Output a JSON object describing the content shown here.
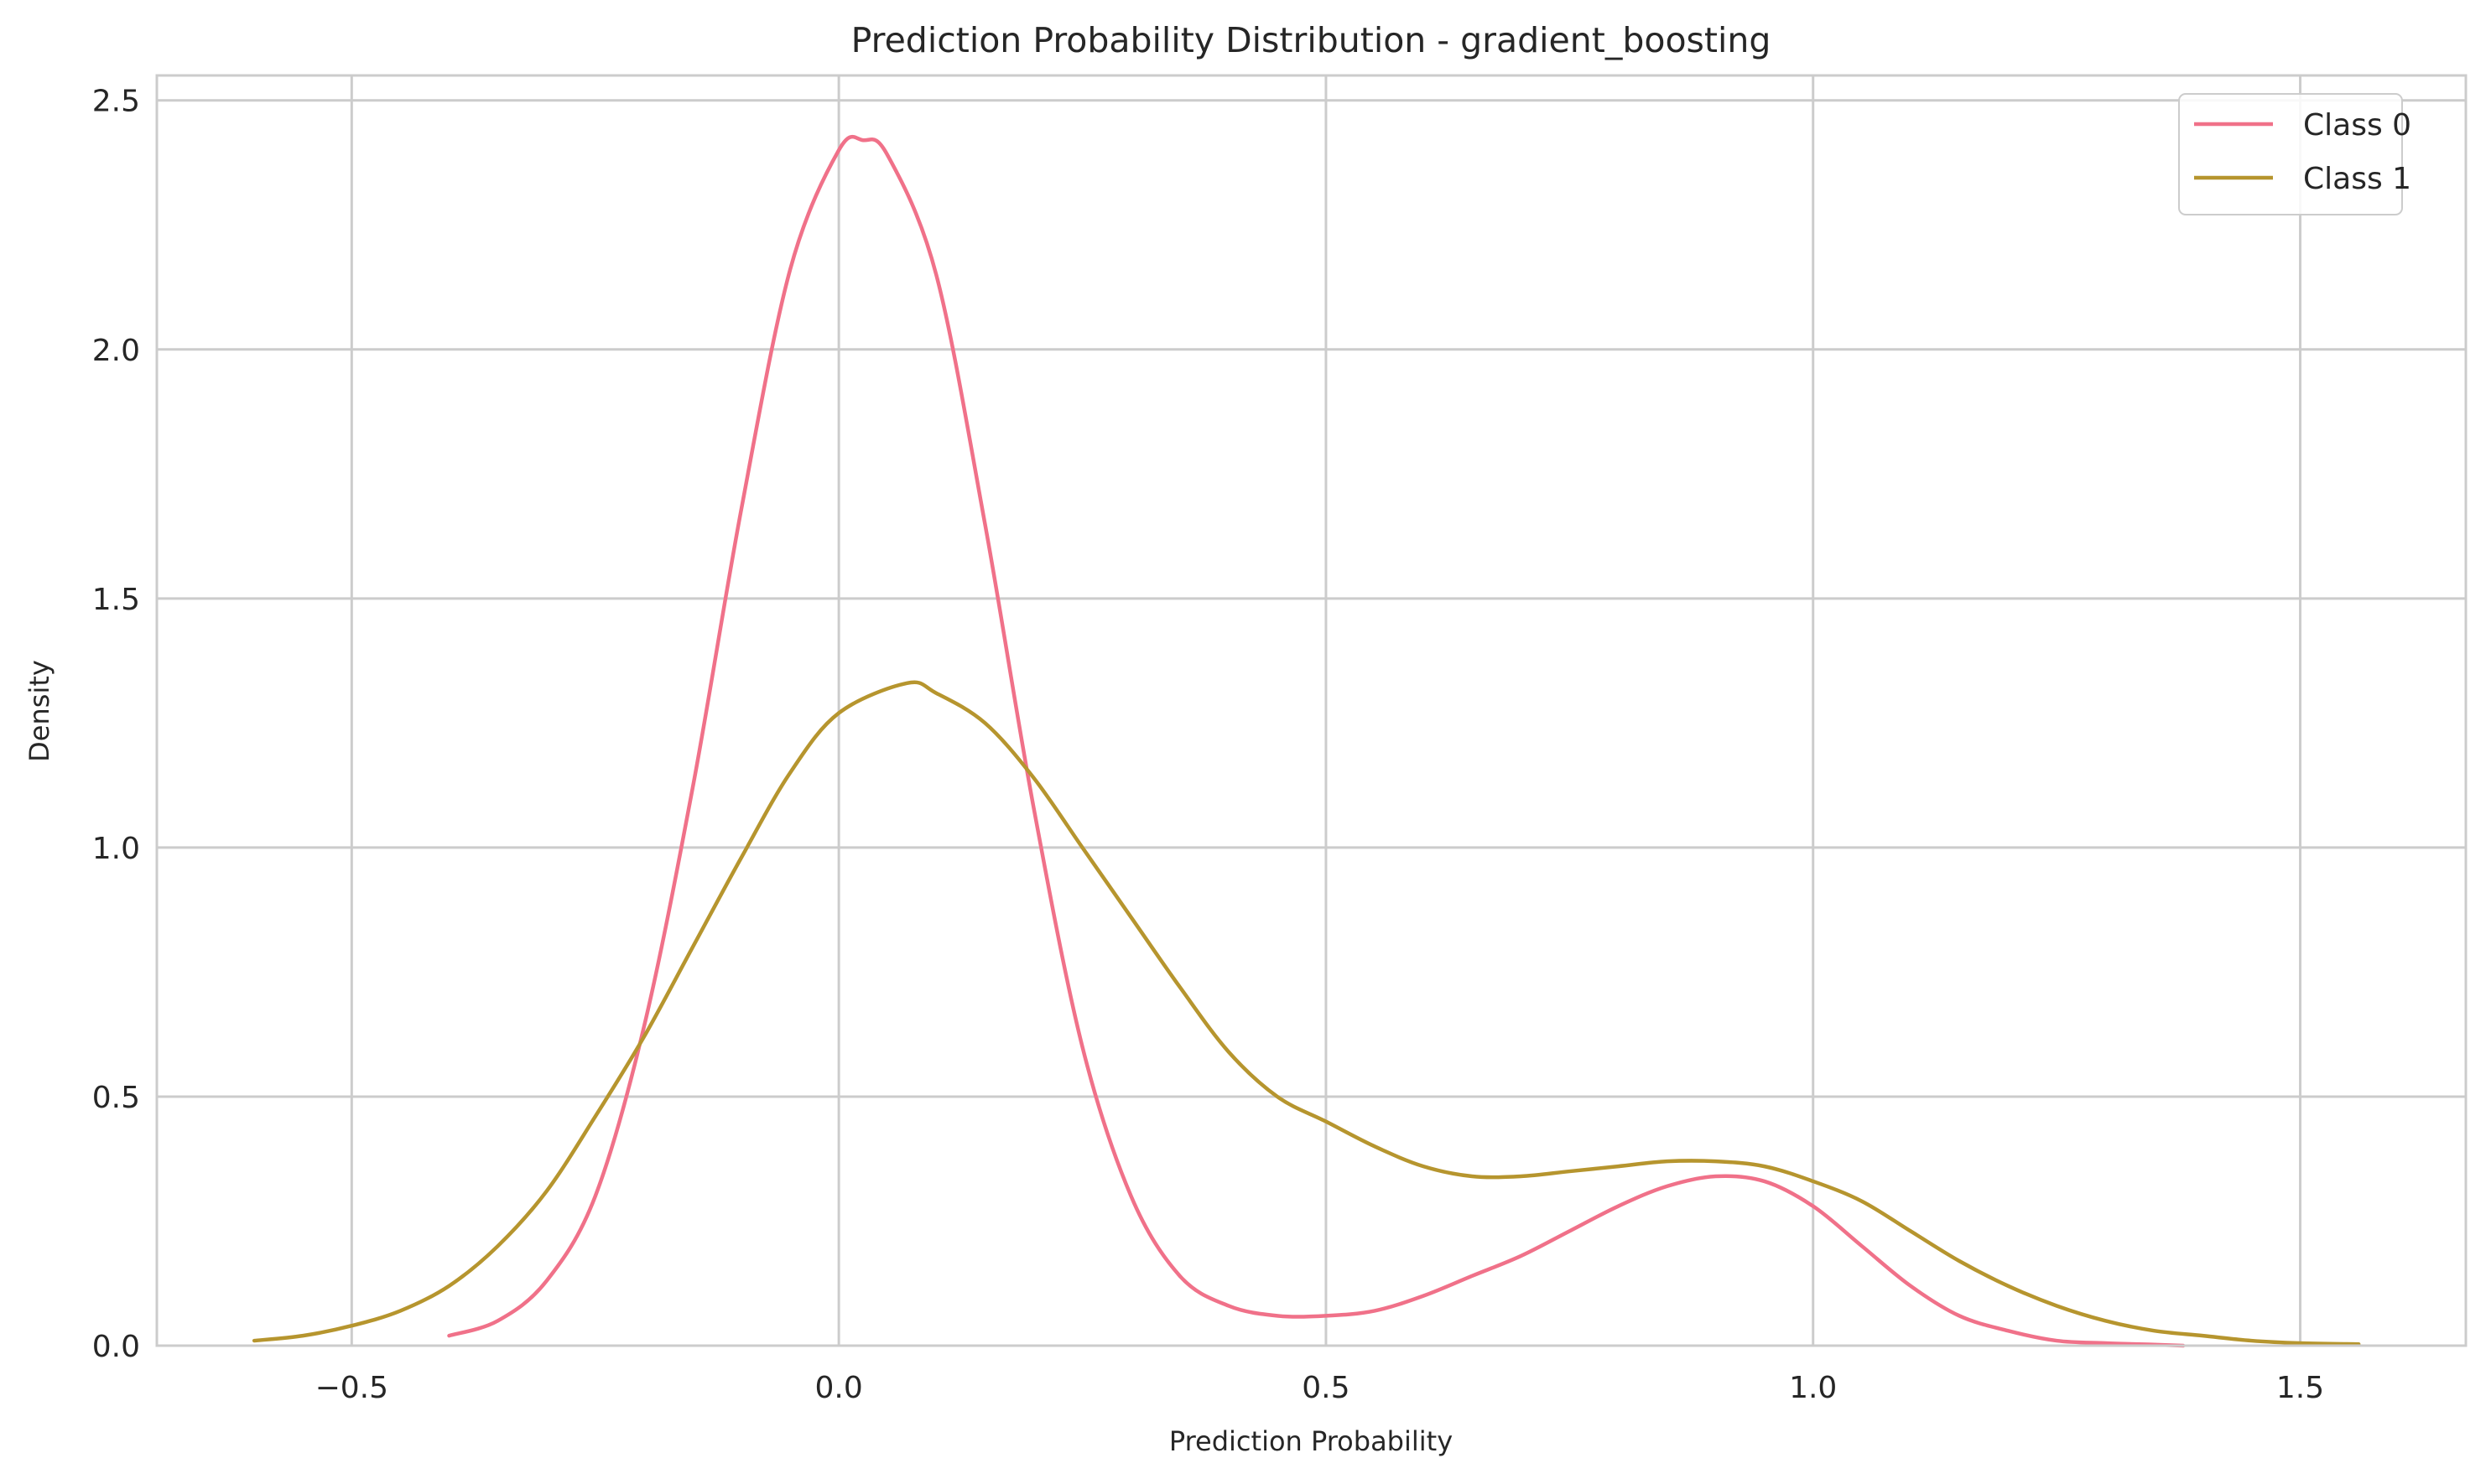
{
  "chart_data": {
    "type": "line",
    "title": "Prediction Probability Distribution - gradient_boosting",
    "xlabel": "Prediction Probability",
    "ylabel": "Density",
    "xlim": [
      -0.7,
      1.67
    ],
    "ylim": [
      0,
      2.55
    ],
    "xticks": [
      {
        "value": -0.5,
        "label": "−0.5"
      },
      {
        "value": 0.0,
        "label": "0.0"
      },
      {
        "value": 0.5,
        "label": "0.5"
      },
      {
        "value": 1.0,
        "label": "1.0"
      },
      {
        "value": 1.5,
        "label": "1.5"
      }
    ],
    "yticks": [
      {
        "value": 0.0,
        "label": "0.0"
      },
      {
        "value": 0.5,
        "label": "0.5"
      },
      {
        "value": 1.0,
        "label": "1.0"
      },
      {
        "value": 1.5,
        "label": "1.5"
      },
      {
        "value": 2.0,
        "label": "2.0"
      },
      {
        "value": 2.5,
        "label": "2.5"
      }
    ],
    "grid": true,
    "legend_position": "top-right",
    "series": [
      {
        "name": "Class 0",
        "color": "#f07189",
        "x": [
          -0.4,
          -0.35,
          -0.3,
          -0.25,
          -0.2,
          -0.15,
          -0.1,
          -0.05,
          0.0,
          0.025,
          0.05,
          0.1,
          0.15,
          0.2,
          0.25,
          0.3,
          0.35,
          0.4,
          0.45,
          0.5,
          0.55,
          0.6,
          0.65,
          0.7,
          0.75,
          0.8,
          0.85,
          0.9,
          0.95,
          1.0,
          1.05,
          1.1,
          1.15,
          1.2,
          1.25,
          1.3,
          1.35,
          1.38
        ],
        "y": [
          0.02,
          0.05,
          0.13,
          0.3,
          0.64,
          1.12,
          1.68,
          2.16,
          2.4,
          2.42,
          2.39,
          2.15,
          1.65,
          1.08,
          0.6,
          0.3,
          0.14,
          0.08,
          0.06,
          0.06,
          0.07,
          0.1,
          0.14,
          0.18,
          0.23,
          0.28,
          0.32,
          0.34,
          0.33,
          0.28,
          0.2,
          0.12,
          0.06,
          0.03,
          0.01,
          0.005,
          0.002,
          0.0
        ]
      },
      {
        "name": "Class 1",
        "color": "#b6952e",
        "x": [
          -0.6,
          -0.55,
          -0.5,
          -0.45,
          -0.4,
          -0.35,
          -0.3,
          -0.25,
          -0.2,
          -0.15,
          -0.1,
          -0.05,
          0.0,
          0.07,
          0.1,
          0.15,
          0.2,
          0.25,
          0.3,
          0.35,
          0.4,
          0.45,
          0.5,
          0.55,
          0.6,
          0.65,
          0.7,
          0.75,
          0.8,
          0.85,
          0.9,
          0.95,
          1.0,
          1.05,
          1.1,
          1.15,
          1.2,
          1.25,
          1.3,
          1.35,
          1.4,
          1.45,
          1.5,
          1.56
        ],
        "y": [
          0.01,
          0.02,
          0.04,
          0.07,
          0.12,
          0.2,
          0.31,
          0.46,
          0.62,
          0.8,
          0.98,
          1.15,
          1.27,
          1.33,
          1.31,
          1.25,
          1.14,
          1.0,
          0.86,
          0.72,
          0.59,
          0.5,
          0.45,
          0.4,
          0.36,
          0.34,
          0.34,
          0.35,
          0.36,
          0.37,
          0.37,
          0.36,
          0.33,
          0.29,
          0.23,
          0.17,
          0.12,
          0.08,
          0.05,
          0.03,
          0.02,
          0.01,
          0.005,
          0.003
        ]
      }
    ]
  }
}
